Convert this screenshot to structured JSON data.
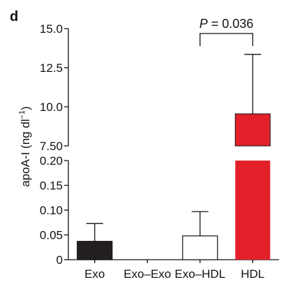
{
  "chart_data": {
    "type": "bar",
    "panel_label": "d",
    "ylabel": "apoA-I (ng dl",
    "ylabel_sup": "−1",
    "ylabel_close": ")",
    "categories": [
      "Exo",
      "Exo–Exo",
      "Exo–HDL",
      "HDL"
    ],
    "values": [
      0.037,
      0.0,
      0.048,
      9.55
    ],
    "error_upper": [
      0.073,
      0.0,
      0.097,
      13.35
    ],
    "colors": [
      "#231f20",
      "#ffffff",
      "#ffffff",
      "#e3202a"
    ],
    "axis_break": true,
    "lower_segment": {
      "ylim": [
        0,
        0.2
      ],
      "ticks": [
        "0",
        "0.05",
        "0.10",
        "0.15",
        "0.20"
      ],
      "tick_values": [
        0,
        0.05,
        0.1,
        0.15,
        0.2
      ]
    },
    "upper_segment": {
      "ylim": [
        7.5,
        15.0
      ],
      "ticks": [
        "7.50",
        "10.0",
        "12.5",
        "15.0"
      ],
      "tick_values": [
        7.5,
        10.0,
        12.5,
        15.0
      ]
    },
    "annotation": {
      "text_italic": "P",
      "text_rest": " = 0.036",
      "from_category": "Exo–HDL",
      "to_category": "HDL"
    },
    "grid": false
  }
}
